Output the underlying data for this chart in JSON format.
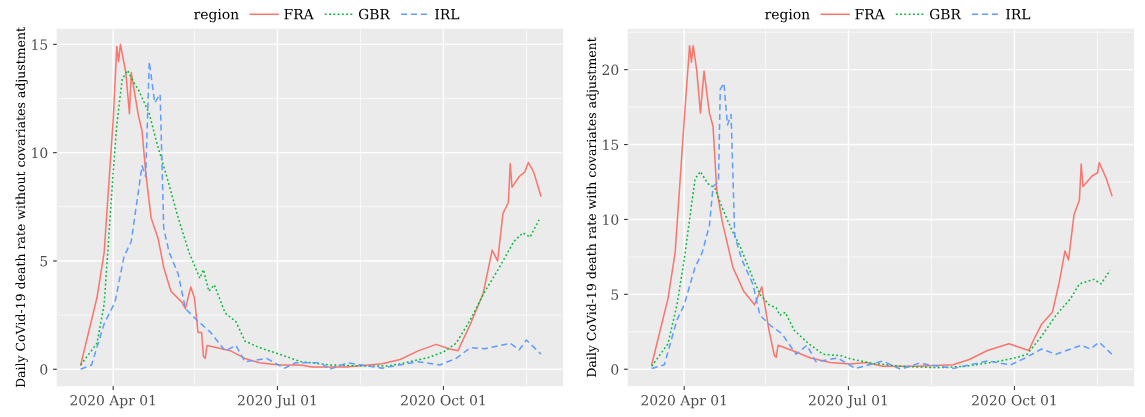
{
  "chart_data": [
    {
      "type": "line",
      "ylabel": "Daily CoVid-19 death rate without covariates adjustment",
      "legend_title": "region",
      "legend": "top",
      "grid": true,
      "xlim": [
        "2020-03-01",
        "2020-12-06"
      ],
      "xticks": [
        {
          "value": "2020-04-01",
          "label": "2020 Apr 01"
        },
        {
          "value": "2020-05-16",
          "label": null
        },
        {
          "value": "2020-07-01",
          "label": "2020 Jul 01"
        },
        {
          "value": "2020-08-16",
          "label": null
        },
        {
          "value": "2020-10-01",
          "label": "2020 Oct 01"
        },
        {
          "value": "2020-11-16",
          "label": null
        }
      ],
      "ylim": [
        -0.76,
        15.7
      ],
      "yticks": [
        0,
        {
          "value": 2.5,
          "label": null
        },
        5,
        {
          "value": 7.5,
          "label": null
        },
        10,
        {
          "value": 12.5,
          "label": null
        },
        15
      ],
      "series": [
        {
          "name": "FRA",
          "color": "#f8766d",
          "line_style": "solid",
          "x": [
            "2020-03-14",
            "2020-03-23",
            "2020-03-27",
            "2020-04-01",
            "2020-04-03",
            "2020-04-04",
            "2020-04-05",
            "2020-04-08",
            "2020-04-10",
            "2020-04-11",
            "2020-04-15",
            "2020-04-17",
            "2020-04-19",
            "2020-04-22",
            "2020-04-26",
            "2020-04-29",
            "2020-05-03",
            "2020-05-09",
            "2020-05-11",
            "2020-05-14",
            "2020-05-16",
            "2020-05-18",
            "2020-05-20",
            "2020-05-21",
            "2020-05-22",
            "2020-05-23",
            "2020-05-28",
            "2020-06-05",
            "2020-06-13",
            "2020-06-21",
            "2020-07-02",
            "2020-07-14",
            "2020-07-20",
            "2020-08-08",
            "2020-08-28",
            "2020-09-07",
            "2020-09-17",
            "2020-09-27",
            "2020-10-04",
            "2020-10-09",
            "2020-10-16",
            "2020-10-23",
            "2020-10-28",
            "2020-10-31",
            "2020-11-03",
            "2020-11-06",
            "2020-11-07",
            "2020-11-08",
            "2020-11-12",
            "2020-11-15",
            "2020-11-17",
            "2020-11-20",
            "2020-11-24"
          ],
          "values": [
            0.2,
            3.3,
            5.4,
            11.5,
            14.9,
            14.2,
            15.0,
            13.7,
            11.8,
            13.7,
            11.7,
            11.0,
            9.1,
            7.0,
            6.0,
            4.7,
            3.6,
            3.1,
            2.8,
            3.8,
            3.3,
            1.7,
            1.7,
            0.6,
            0.5,
            1.1,
            1.0,
            0.85,
            0.5,
            0.3,
            0.2,
            0.2,
            0.1,
            0.1,
            0.25,
            0.45,
            0.85,
            1.15,
            0.95,
            0.85,
            2.1,
            3.5,
            5.5,
            5.0,
            7.2,
            7.7,
            9.5,
            8.4,
            8.9,
            9.1,
            9.55,
            9.1,
            8.0
          ]
        },
        {
          "name": "GBR",
          "color": "#00ba38",
          "line_style": "dotted",
          "x": [
            "2020-03-14",
            "2020-03-23",
            "2020-03-27",
            "2020-04-01",
            "2020-04-03",
            "2020-04-06",
            "2020-04-09",
            "2020-04-12",
            "2020-04-15",
            "2020-04-21",
            "2020-04-25",
            "2020-05-01",
            "2020-05-07",
            "2020-05-13",
            "2020-05-19",
            "2020-05-21",
            "2020-05-24",
            "2020-05-27",
            "2020-06-02",
            "2020-06-08",
            "2020-06-13",
            "2020-06-21",
            "2020-07-02",
            "2020-07-14",
            "2020-07-30",
            "2020-08-19",
            "2020-08-31",
            "2020-09-07",
            "2020-09-23",
            "2020-10-01",
            "2020-10-08",
            "2020-10-16",
            "2020-10-24",
            "2020-11-01",
            "2020-11-09",
            "2020-11-14",
            "2020-11-18",
            "2020-11-23"
          ],
          "values": [
            0.2,
            1.2,
            3.0,
            9.1,
            11.3,
            13.4,
            13.8,
            13.3,
            12.9,
            11.8,
            10.5,
            8.8,
            7.0,
            5.4,
            4.2,
            4.6,
            3.6,
            3.9,
            2.6,
            2.2,
            1.3,
            1.0,
            0.7,
            0.35,
            0.2,
            0.15,
            0.15,
            0.25,
            0.55,
            0.8,
            1.2,
            2.3,
            3.6,
            4.7,
            5.9,
            6.3,
            6.1,
            6.9
          ]
        },
        {
          "name": "IRL",
          "color": "#619cff",
          "line_style": "dashed",
          "x": [
            "2020-03-14",
            "2020-03-20",
            "2020-03-27",
            "2020-04-02",
            "2020-04-07",
            "2020-04-11",
            "2020-04-17",
            "2020-04-19",
            "2020-04-21",
            "2020-04-24",
            "2020-04-27",
            "2020-04-29",
            "2020-05-02",
            "2020-05-07",
            "2020-05-11",
            "2020-05-17",
            "2020-05-25",
            "2020-06-02",
            "2020-06-08",
            "2020-06-13",
            "2020-06-25",
            "2020-07-05",
            "2020-07-11",
            "2020-07-25",
            "2020-07-30",
            "2020-08-09",
            "2020-08-28",
            "2020-09-17",
            "2020-09-29",
            "2020-10-08",
            "2020-10-16",
            "2020-10-24",
            "2020-11-07",
            "2020-11-12",
            "2020-11-16",
            "2020-11-24"
          ],
          "values": [
            0.0,
            0.2,
            2.1,
            3.1,
            5.2,
            5.9,
            9.4,
            8.9,
            14.2,
            12.3,
            12.7,
            6.5,
            5.4,
            4.4,
            2.8,
            2.3,
            1.7,
            0.85,
            1.1,
            0.35,
            0.5,
            0.05,
            0.3,
            0.3,
            0.0,
            0.3,
            0.05,
            0.35,
            0.2,
            0.5,
            1.0,
            0.95,
            1.2,
            0.9,
            1.35,
            0.7
          ]
        }
      ]
    },
    {
      "type": "line",
      "ylabel": "Daily CoVid-19 death rate with covariates adjustment",
      "legend_title": "region",
      "legend": "top",
      "grid": true,
      "xlim": [
        "2020-03-01",
        "2020-12-06"
      ],
      "xticks": [
        {
          "value": "2020-04-01",
          "label": "2020 Apr 01"
        },
        {
          "value": "2020-05-16",
          "label": null
        },
        {
          "value": "2020-07-01",
          "label": "2020 Jul 01"
        },
        {
          "value": "2020-08-16",
          "label": null
        },
        {
          "value": "2020-10-01",
          "label": "2020 Oct 01"
        },
        {
          "value": "2020-11-16",
          "label": null
        }
      ],
      "ylim": [
        -1.1,
        22.7
      ],
      "yticks": [
        0,
        {
          "value": 2.5,
          "label": null
        },
        5,
        {
          "value": 7.5,
          "label": null
        },
        10,
        {
          "value": 12.5,
          "label": null
        },
        15,
        {
          "value": 17.5,
          "label": null
        },
        20,
        {
          "value": 22.5,
          "label": null
        }
      ],
      "series": [
        {
          "name": "FRA",
          "color": "#f8766d",
          "line_style": "solid",
          "x": [
            "2020-03-14",
            "2020-03-23",
            "2020-03-27",
            "2020-04-01",
            "2020-04-04",
            "2020-04-05",
            "2020-04-06",
            "2020-04-08",
            "2020-04-10",
            "2020-04-12",
            "2020-04-15",
            "2020-04-17",
            "2020-04-19",
            "2020-04-22",
            "2020-04-28",
            "2020-05-04",
            "2020-05-10",
            "2020-05-14",
            "2020-05-18",
            "2020-05-21",
            "2020-05-22",
            "2020-05-23",
            "2020-06-01",
            "2020-06-10",
            "2020-06-21",
            "2020-07-02",
            "2020-07-11",
            "2020-07-20",
            "2020-08-08",
            "2020-08-28",
            "2020-09-06",
            "2020-09-16",
            "2020-09-28",
            "2020-10-04",
            "2020-10-09",
            "2020-10-11",
            "2020-10-16",
            "2020-10-22",
            "2020-10-26",
            "2020-10-29",
            "2020-10-31",
            "2020-11-03",
            "2020-11-06",
            "2020-11-07",
            "2020-11-08",
            "2020-11-13",
            "2020-11-16",
            "2020-11-17",
            "2020-11-21",
            "2020-11-24"
          ],
          "values": [
            0.3,
            4.7,
            7.8,
            16.6,
            21.6,
            20.5,
            21.6,
            19.9,
            17.1,
            19.9,
            17.1,
            16.2,
            12.0,
            9.9,
            6.8,
            5.2,
            4.3,
            5.5,
            2.6,
            0.9,
            0.8,
            1.6,
            1.2,
            0.75,
            0.45,
            0.35,
            0.45,
            0.2,
            0.2,
            0.3,
            0.65,
            1.25,
            1.7,
            1.45,
            1.25,
            1.8,
            3.0,
            3.8,
            5.9,
            7.9,
            7.3,
            10.3,
            11.3,
            13.7,
            12.2,
            12.9,
            13.1,
            13.8,
            12.7,
            11.6
          ]
        },
        {
          "name": "GBR",
          "color": "#00ba38",
          "line_style": "dotted",
          "x": [
            "2020-03-14",
            "2020-03-23",
            "2020-03-28",
            "2020-04-01",
            "2020-04-07",
            "2020-04-10",
            "2020-04-14",
            "2020-04-18",
            "2020-04-22",
            "2020-04-27",
            "2020-05-02",
            "2020-05-09",
            "2020-05-13",
            "2020-05-18",
            "2020-05-22",
            "2020-05-24",
            "2020-05-27",
            "2020-06-01",
            "2020-06-09",
            "2020-06-17",
            "2020-06-27",
            "2020-07-02",
            "2020-07-14",
            "2020-07-30",
            "2020-08-19",
            "2020-09-04",
            "2020-09-23",
            "2020-10-01",
            "2020-10-08",
            "2020-10-16",
            "2020-10-24",
            "2020-11-01",
            "2020-11-06",
            "2020-11-14",
            "2020-11-18",
            "2020-11-23"
          ],
          "values": [
            0.2,
            1.7,
            4.3,
            7.3,
            12.7,
            13.2,
            12.4,
            12.1,
            10.8,
            9.4,
            8.2,
            6.1,
            5.0,
            4.3,
            4.1,
            3.6,
            3.8,
            2.6,
            1.7,
            1.0,
            0.9,
            0.7,
            0.4,
            0.2,
            0.1,
            0.2,
            0.55,
            0.75,
            1.0,
            2.2,
            3.6,
            4.7,
            5.7,
            6.0,
            5.7,
            6.6
          ]
        },
        {
          "name": "IRL",
          "color": "#619cff",
          "line_style": "dashed",
          "x": [
            "2020-03-14",
            "2020-03-21",
            "2020-03-28",
            "2020-04-01",
            "2020-04-07",
            "2020-04-11",
            "2020-04-15",
            "2020-04-17",
            "2020-04-20",
            "2020-04-21",
            "2020-04-23",
            "2020-04-25",
            "2020-04-27",
            "2020-04-29",
            "2020-05-03",
            "2020-05-09",
            "2020-05-13",
            "2020-05-19",
            "2020-05-25",
            "2020-06-02",
            "2020-06-08",
            "2020-06-13",
            "2020-06-25",
            "2020-07-05",
            "2020-07-20",
            "2020-07-30",
            "2020-08-09",
            "2020-08-28",
            "2020-09-16",
            "2020-09-29",
            "2020-10-07",
            "2020-10-16",
            "2020-10-24",
            "2020-11-07",
            "2020-11-12",
            "2020-11-17",
            "2020-11-24"
          ],
          "values": [
            0.05,
            0.3,
            3.3,
            4.3,
            6.8,
            7.8,
            9.6,
            12.2,
            12.5,
            18.7,
            19.1,
            16.3,
            17.0,
            8.9,
            7.3,
            5.7,
            3.6,
            2.9,
            2.4,
            1.0,
            1.6,
            0.5,
            0.75,
            0.05,
            0.55,
            0.0,
            0.4,
            0.05,
            0.55,
            0.3,
            0.75,
            1.35,
            1.0,
            1.6,
            1.35,
            1.8,
            1.0
          ]
        }
      ]
    }
  ]
}
